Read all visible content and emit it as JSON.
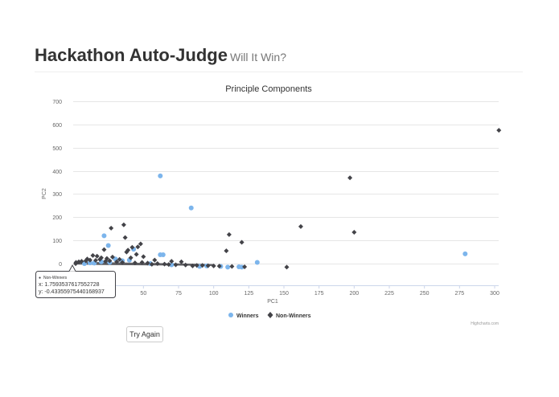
{
  "header": {
    "title": "Hackathon Auto-Judge",
    "subtitle": "Will It Win?"
  },
  "button": {
    "label": "Try Again"
  },
  "credits": "Highcharts.com",
  "tooltip": {
    "series": "Non-Winners",
    "x_text": "x: 1.7593537617552728",
    "y_text": "y: -0.43355975440168937"
  },
  "chart_data": {
    "type": "scatter",
    "title": "Principle Components",
    "xlabel": "PC1",
    "ylabel": "PC2",
    "xlim": [
      0,
      300
    ],
    "ylim": [
      -40,
      700
    ],
    "xticks": [
      50,
      75,
      100,
      125,
      150,
      175,
      200,
      225,
      250,
      275,
      300
    ],
    "yticks": [
      0,
      100,
      200,
      300,
      400,
      500,
      600,
      700
    ],
    "grid": true,
    "legend_position": "bottom-center",
    "series": [
      {
        "name": "Winners",
        "color": "#7cb5ec",
        "marker": "circle",
        "points": [
          [
            62,
            378
          ],
          [
            84,
            240
          ],
          [
            22,
            120
          ],
          [
            25,
            78
          ],
          [
            43,
            62
          ],
          [
            62,
            38
          ],
          [
            64,
            38
          ],
          [
            30,
            20
          ],
          [
            35,
            12
          ],
          [
            40,
            15
          ],
          [
            20,
            8
          ],
          [
            26,
            5
          ],
          [
            131,
            5
          ],
          [
            279,
            42
          ],
          [
            90,
            -12
          ],
          [
            110,
            -15
          ],
          [
            120,
            -15
          ],
          [
            15,
            2
          ],
          [
            55,
            0
          ],
          [
            70,
            -5
          ],
          [
            95,
            -10
          ],
          [
            105,
            -12
          ],
          [
            118,
            -14
          ],
          [
            8,
            0
          ],
          [
            12,
            3
          ]
        ]
      },
      {
        "name": "Non-Winners",
        "color": "#434348",
        "marker": "diamond",
        "points": [
          [
            303,
            575
          ],
          [
            197,
            370
          ],
          [
            200,
            135
          ],
          [
            162,
            160
          ],
          [
            111,
            125
          ],
          [
            120,
            92
          ],
          [
            109,
            55
          ],
          [
            36,
            167
          ],
          [
            27,
            153
          ],
          [
            37,
            112
          ],
          [
            48,
            85
          ],
          [
            22,
            60
          ],
          [
            46,
            72
          ],
          [
            42,
            70
          ],
          [
            39,
            58
          ],
          [
            38,
            50
          ],
          [
            45,
            40
          ],
          [
            50,
            30
          ],
          [
            14,
            35
          ],
          [
            17,
            32
          ],
          [
            20,
            25
          ],
          [
            10,
            20
          ],
          [
            24,
            22
          ],
          [
            28,
            28
          ],
          [
            33,
            18
          ],
          [
            41,
            25
          ],
          [
            152,
            -15
          ],
          [
            58,
            15
          ],
          [
            70,
            10
          ],
          [
            77,
            8
          ],
          [
            100,
            -10
          ],
          [
            85,
            -10
          ],
          [
            92,
            -8
          ],
          [
            122,
            -14
          ],
          [
            113,
            -12
          ],
          [
            2,
            5
          ],
          [
            4,
            8
          ],
          [
            6,
            10
          ],
          [
            9,
            12
          ],
          [
            12,
            15
          ],
          [
            16,
            14
          ],
          [
            19,
            18
          ],
          [
            23,
            10
          ],
          [
            26,
            12
          ],
          [
            31,
            8
          ],
          [
            35,
            5
          ],
          [
            44,
            3
          ],
          [
            49,
            5
          ],
          [
            53,
            2
          ],
          [
            56,
            -3
          ],
          [
            60,
            0
          ],
          [
            65,
            -2
          ],
          [
            68,
            -4
          ],
          [
            73,
            -5
          ],
          [
            80,
            -6
          ],
          [
            88,
            -8
          ],
          [
            96,
            -9
          ],
          [
            104,
            -11
          ],
          [
            1.7593537617552728,
            -0.43355975440168937
          ]
        ]
      }
    ]
  }
}
